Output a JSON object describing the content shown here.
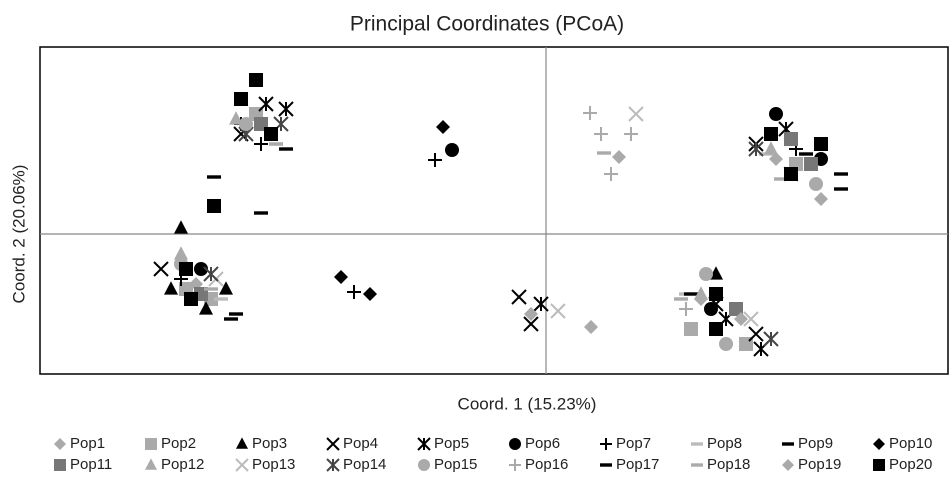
{
  "chart_data": {
    "type": "scatter",
    "title": "Principal Coordinates (PCoA)",
    "x_label": "Coord. 1 (15.23%)",
    "y_label": "Coord. 2 (20.06%)",
    "xlim": [
      -1.012,
      0.804
    ],
    "ylim": [
      -0.28,
      0.374
    ],
    "series": [
      {
        "name": "Pop1",
        "color": "#aaaaaa",
        "marker": "diamond",
        "x": [
          -0.7,
          -0.6,
          0.46,
          0.31
        ],
        "y": [
          -0.1,
          0.21,
          0.15,
          -0.13
        ]
      },
      {
        "name": "Pop2",
        "color": "#aaaaaa",
        "marker": "square",
        "x": [
          -0.72,
          -0.67,
          -0.58,
          0.5,
          0.29,
          0.4
        ],
        "y": [
          -0.11,
          -0.13,
          0.24,
          0.14,
          -0.19,
          -0.22
        ]
      },
      {
        "name": "Pop3",
        "color": "#000000",
        "marker": "triangle",
        "x": [
          -0.73,
          -0.75,
          -0.68,
          -0.64,
          0.34
        ],
        "y": [
          0.012,
          -0.11,
          -0.15,
          -0.11,
          -0.08
        ]
      },
      {
        "name": "Pop4",
        "color": "#000000",
        "marker": "x",
        "x": [
          -0.77,
          -0.054,
          -0.03,
          -0.61,
          0.42,
          0.34,
          0.42
        ],
        "y": [
          -0.07,
          -0.126,
          -0.18,
          0.2,
          0.18,
          -0.14,
          -0.2
        ]
      },
      {
        "name": "Pop5",
        "color": "#000000",
        "marker": "asterisk",
        "x": [
          -0.56,
          -0.52,
          -0.01,
          0.43,
          0.36,
          0.48
        ],
        "y": [
          0.26,
          0.25,
          -0.14,
          -0.23,
          -0.17,
          0.21
        ]
      },
      {
        "name": "Pop6",
        "color": "#000000",
        "marker": "circle",
        "x": [
          -0.188,
          0.46,
          0.55,
          -0.69,
          0.33
        ],
        "y": [
          0.168,
          0.24,
          0.15,
          -0.07,
          -0.15
        ]
      },
      {
        "name": "Pop7",
        "color": "#000000",
        "marker": "plus",
        "x": [
          -0.222,
          -0.384,
          -0.57,
          -0.61,
          0.5,
          -0.73
        ],
        "y": [
          0.148,
          -0.116,
          0.18,
          0.22,
          0.17,
          -0.09
        ]
      },
      {
        "name": "Pop8",
        "color": "#bbbbbb",
        "marker": "dash",
        "x": [
          -0.54,
          0.28,
          0.44,
          -0.65
        ],
        "y": [
          0.18,
          -0.12,
          0.16,
          -0.13
        ]
      },
      {
        "name": "Pop9",
        "color": "#000000",
        "marker": "dash",
        "x": [
          -0.664,
          -0.57,
          0.59,
          0.52,
          0.29,
          -0.62
        ],
        "y": [
          0.114,
          0.042,
          0.12,
          0.16,
          -0.12,
          -0.16
        ]
      },
      {
        "name": "Pop10",
        "color": "#000000",
        "marker": "diamond",
        "x": [
          -0.206,
          -0.41,
          -0.352,
          0.55
        ],
        "y": [
          0.214,
          -0.086,
          -0.12,
          0.15
        ]
      },
      {
        "name": "Pop11",
        "color": "#777777",
        "marker": "square",
        "x": [
          -0.57,
          -0.69,
          0.49,
          0.53,
          0.38
        ],
        "y": [
          0.22,
          -0.12,
          0.19,
          0.14,
          -0.15
        ]
      },
      {
        "name": "Pop12",
        "color": "#aaaaaa",
        "marker": "triangle",
        "x": [
          -0.73,
          -0.62,
          0.31,
          0.45
        ],
        "y": [
          -0.04,
          0.23,
          -0.12,
          0.17
        ]
      },
      {
        "name": "Pop13",
        "color": "#bbbbbb",
        "marker": "x",
        "x": [
          0.18,
          0.024,
          -0.66,
          0.49,
          0.41
        ],
        "y": [
          0.24,
          -0.154,
          -0.09,
          0.12,
          -0.17
        ]
      },
      {
        "name": "Pop14",
        "color": "#444444",
        "marker": "asterisk",
        "x": [
          -0.53,
          -0.6,
          -0.67,
          0.45,
          0.42
        ],
        "y": [
          0.22,
          0.2,
          -0.08,
          -0.21,
          0.17
        ]
      },
      {
        "name": "Pop15",
        "color": "#aaaaaa",
        "marker": "circle",
        "x": [
          -0.6,
          -0.73,
          0.32,
          0.36,
          0.54
        ],
        "y": [
          0.22,
          -0.06,
          -0.08,
          -0.22,
          0.1
        ]
      },
      {
        "name": "Pop16",
        "color": "#aaaaaa",
        "marker": "plus",
        "x": [
          0.088,
          0.11,
          0.17,
          0.13,
          0.28
        ],
        "y": [
          0.242,
          0.2,
          0.2,
          0.12,
          -0.15
        ]
      },
      {
        "name": "Pop17",
        "color": "#000000",
        "marker": "dash",
        "x": [
          -0.63,
          -0.52,
          0.59,
          0.34
        ],
        "y": [
          -0.17,
          0.17,
          0.09,
          -0.19
        ]
      },
      {
        "name": "Pop18",
        "color": "#aaaaaa",
        "marker": "dash",
        "x": [
          0.116,
          -0.54,
          0.47,
          0.27,
          -0.67
        ],
        "y": [
          0.162,
          0.18,
          0.11,
          -0.13,
          -0.11
        ]
      },
      {
        "name": "Pop19",
        "color": "#aaaaaa",
        "marker": "diamond",
        "x": [
          0.146,
          0.09,
          -0.03,
          0.55,
          0.39
        ],
        "y": [
          0.154,
          -0.186,
          -0.16,
          0.07,
          -0.17
        ]
      },
      {
        "name": "Pop20",
        "color": "#000000",
        "marker": "square",
        "x": [
          -0.664,
          -0.58,
          -0.61,
          -0.55,
          -0.72,
          -0.71,
          0.45,
          0.49,
          0.55,
          0.34,
          0.34
        ],
        "y": [
          0.056,
          0.308,
          0.27,
          0.2,
          -0.07,
          -0.13,
          0.2,
          0.12,
          0.18,
          -0.12,
          -0.19
        ]
      }
    ]
  }
}
